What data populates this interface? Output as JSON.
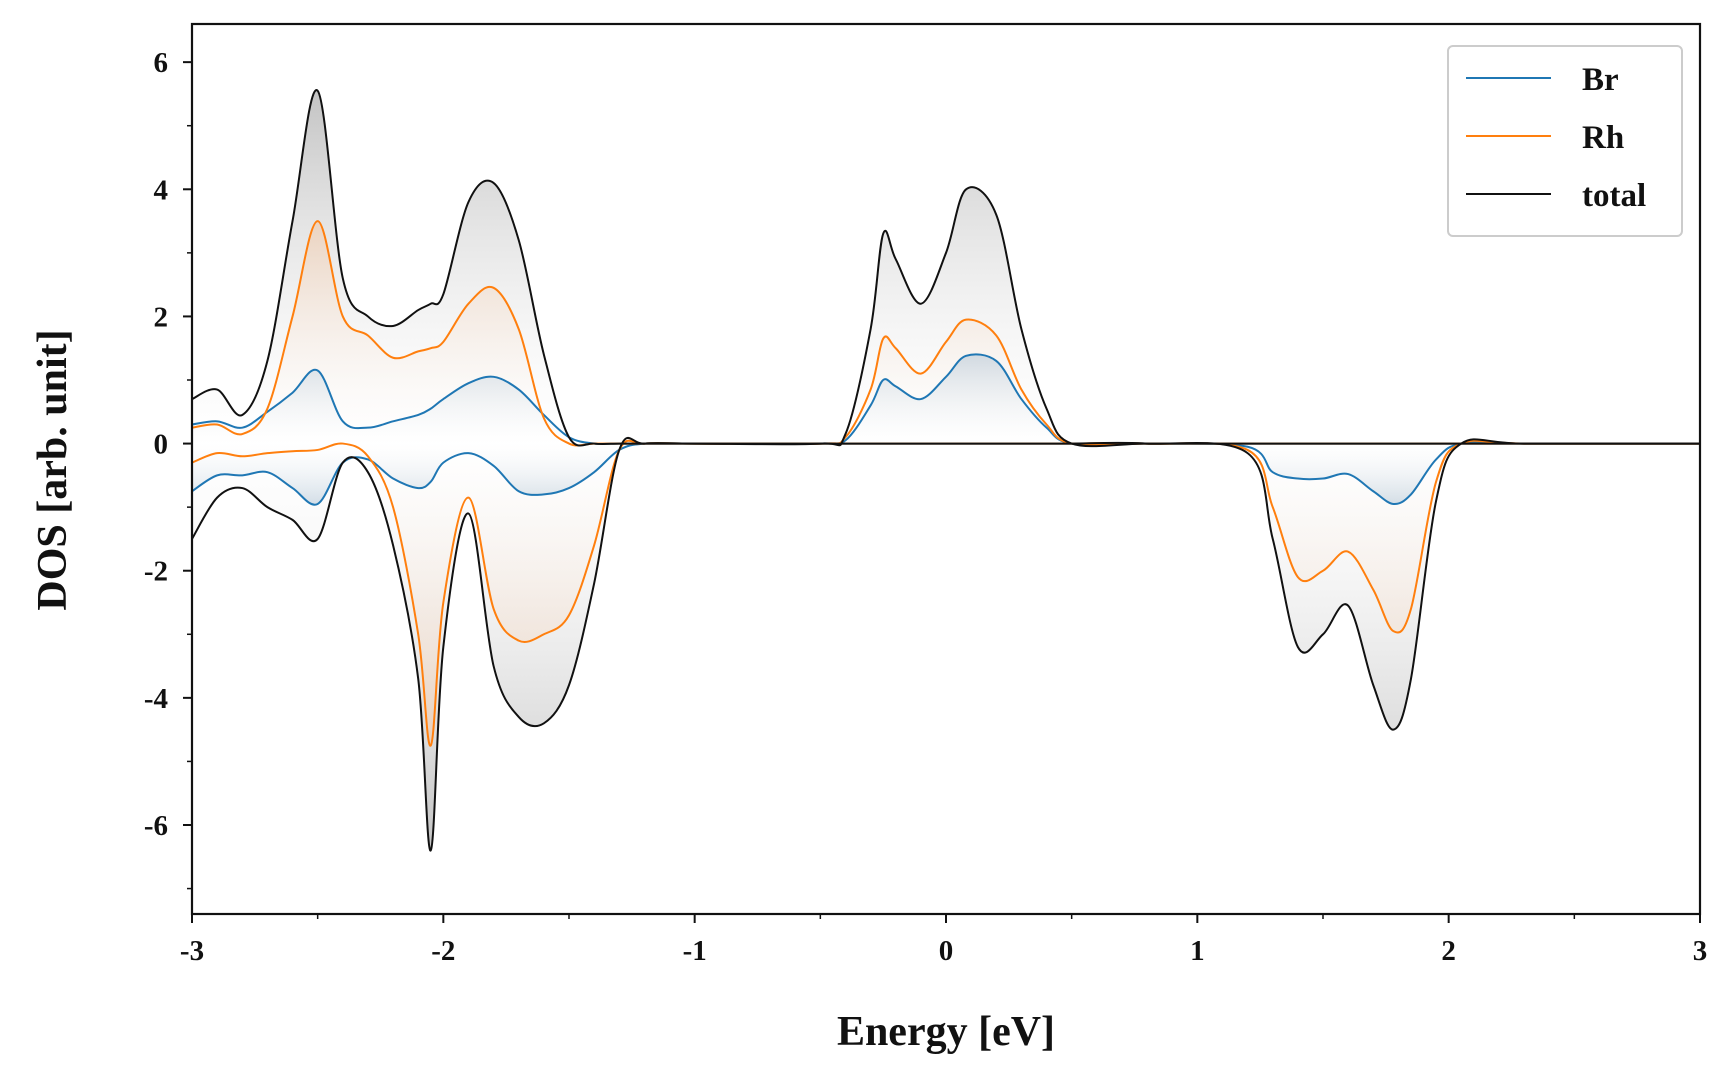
{
  "chart_data": {
    "type": "line",
    "title": "",
    "xlabel": "Energy [eV]",
    "ylabel": "DOS [arb. unit]",
    "xlim": [
      -3,
      3
    ],
    "ylim": [
      -7.4,
      6.6
    ],
    "xticks": [
      -3,
      -2,
      -1,
      0,
      1,
      2,
      3
    ],
    "xtick_labels": [
      "-3",
      "-2",
      "-1",
      "0",
      "1",
      "2",
      "3"
    ],
    "yticks": [
      -6,
      -4,
      -2,
      0,
      2,
      4,
      6
    ],
    "ytick_labels": [
      "-6",
      "-4",
      "-2",
      "0",
      "2",
      "4",
      "6"
    ],
    "grid": false,
    "legend_position": "top-right",
    "fill_between_zero": true,
    "x": [
      -3.0,
      -2.9,
      -2.8,
      -2.7,
      -2.6,
      -2.5,
      -2.4,
      -2.3,
      -2.2,
      -2.1,
      -2.05,
      -2.0,
      -1.9,
      -1.8,
      -1.7,
      -1.6,
      -1.5,
      -1.4,
      -1.3,
      -1.2,
      -1.0,
      -0.5,
      -0.4,
      -0.3,
      -0.25,
      -0.2,
      -0.1,
      0.0,
      0.08,
      0.2,
      0.3,
      0.4,
      0.5,
      0.8,
      1.2,
      1.3,
      1.4,
      1.5,
      1.6,
      1.7,
      1.78,
      1.85,
      1.95,
      2.05,
      2.3,
      3.0
    ],
    "series": [
      {
        "name": "Br",
        "color": "#1f77b4",
        "up": [
          0.3,
          0.35,
          0.25,
          0.5,
          0.8,
          1.15,
          0.35,
          0.25,
          0.35,
          0.45,
          0.55,
          0.7,
          0.95,
          1.05,
          0.85,
          0.45,
          0.1,
          0.0,
          0.0,
          0.0,
          0.0,
          0.0,
          0.05,
          0.6,
          1.0,
          0.9,
          0.7,
          1.05,
          1.38,
          1.3,
          0.7,
          0.25,
          0.0,
          0.0,
          0.0,
          0.0,
          0.0,
          0.0,
          0.0,
          0.0,
          0.0,
          0.0,
          0.0,
          0.0,
          0.0,
          0.0
        ],
        "down": [
          -0.75,
          -0.5,
          -0.5,
          -0.45,
          -0.7,
          -0.95,
          -0.3,
          -0.25,
          -0.55,
          -0.7,
          -0.6,
          -0.3,
          -0.15,
          -0.35,
          -0.75,
          -0.8,
          -0.7,
          -0.45,
          -0.1,
          0.0,
          0.0,
          0.0,
          0.0,
          0.0,
          0.0,
          0.0,
          0.0,
          0.0,
          0.0,
          0.0,
          0.0,
          0.0,
          0.0,
          0.0,
          -0.05,
          -0.45,
          -0.55,
          -0.55,
          -0.48,
          -0.75,
          -0.95,
          -0.8,
          -0.25,
          0.0,
          0.0,
          0.0
        ]
      },
      {
        "name": "Rh",
        "color": "#ff7f0e",
        "up": [
          0.25,
          0.3,
          0.15,
          0.55,
          2.0,
          3.5,
          2.0,
          1.7,
          1.35,
          1.45,
          1.5,
          1.6,
          2.2,
          2.45,
          1.8,
          0.4,
          0.0,
          0.0,
          0.0,
          0.0,
          0.0,
          0.0,
          0.1,
          0.85,
          1.65,
          1.5,
          1.1,
          1.6,
          1.95,
          1.7,
          0.85,
          0.3,
          0.0,
          0.0,
          0.0,
          0.0,
          0.0,
          0.0,
          0.0,
          0.0,
          0.0,
          0.0,
          0.0,
          0.0,
          0.0,
          0.0
        ],
        "down": [
          -0.3,
          -0.15,
          -0.2,
          -0.15,
          -0.12,
          -0.1,
          0.0,
          -0.2,
          -1.0,
          -3.0,
          -4.75,
          -2.5,
          -0.85,
          -2.6,
          -3.1,
          -3.0,
          -2.7,
          -1.6,
          -0.1,
          0.0,
          0.0,
          0.0,
          0.0,
          0.0,
          0.0,
          0.0,
          0.0,
          0.0,
          0.0,
          0.0,
          0.0,
          0.0,
          0.0,
          0.0,
          -0.1,
          -1.0,
          -2.1,
          -2.0,
          -1.7,
          -2.3,
          -2.95,
          -2.6,
          -0.6,
          0.0,
          0.0,
          0.0
        ]
      },
      {
        "name": "total",
        "color": "#111111",
        "up": [
          0.7,
          0.85,
          0.45,
          1.3,
          3.5,
          5.55,
          2.6,
          2.0,
          1.85,
          2.1,
          2.2,
          2.35,
          3.8,
          4.1,
          3.2,
          1.4,
          0.1,
          0.0,
          0.0,
          0.0,
          0.0,
          0.0,
          0.15,
          1.8,
          3.3,
          2.9,
          2.2,
          3.0,
          4.0,
          3.6,
          1.8,
          0.55,
          0.0,
          0.0,
          0.0,
          0.0,
          0.0,
          0.0,
          0.0,
          0.0,
          0.0,
          0.0,
          0.0,
          0.0,
          0.0,
          0.0
        ],
        "down": [
          -1.5,
          -0.85,
          -0.7,
          -1.0,
          -1.2,
          -1.5,
          -0.3,
          -0.45,
          -1.6,
          -3.7,
          -6.4,
          -3.2,
          -1.1,
          -3.5,
          -4.3,
          -4.4,
          -3.8,
          -2.2,
          -0.1,
          0.0,
          0.0,
          0.0,
          0.0,
          0.0,
          0.0,
          0.0,
          0.0,
          0.0,
          0.0,
          0.0,
          0.0,
          0.0,
          0.0,
          0.0,
          -0.15,
          -1.5,
          -3.2,
          -3.0,
          -2.55,
          -3.8,
          -4.5,
          -3.7,
          -0.9,
          0.0,
          0.0,
          0.0
        ]
      }
    ]
  }
}
